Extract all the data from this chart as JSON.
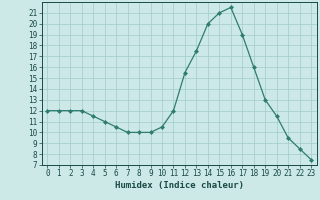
{
  "x": [
    0,
    1,
    2,
    3,
    4,
    5,
    6,
    7,
    8,
    9,
    10,
    11,
    12,
    13,
    14,
    15,
    16,
    17,
    18,
    19,
    20,
    21,
    22,
    23
  ],
  "y": [
    12,
    12,
    12,
    12,
    11.5,
    11,
    10.5,
    10,
    10,
    10,
    10.5,
    12,
    15.5,
    17.5,
    20,
    21,
    21.5,
    19,
    16,
    13,
    11.5,
    9.5,
    8.5,
    7.5
  ],
  "xlabel": "Humidex (Indice chaleur)",
  "line_color": "#2e7d6e",
  "marker": "D",
  "marker_size": 2.0,
  "background_color": "#cce9e7",
  "grid_color": "#a0ccc9",
  "text_color": "#1a4a45",
  "xlim": [
    -0.5,
    23.5
  ],
  "ylim": [
    7,
    22
  ],
  "yticks": [
    7,
    8,
    9,
    10,
    11,
    12,
    13,
    14,
    15,
    16,
    17,
    18,
    19,
    20,
    21
  ],
  "xticks": [
    0,
    1,
    2,
    3,
    4,
    5,
    6,
    7,
    8,
    9,
    10,
    11,
    12,
    13,
    14,
    15,
    16,
    17,
    18,
    19,
    20,
    21,
    22,
    23
  ],
  "tick_fontsize": 5.5,
  "xlabel_fontsize": 6.5
}
